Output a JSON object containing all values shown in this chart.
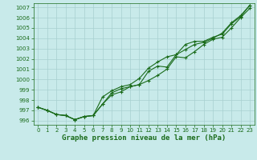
{
  "xlabel": "Graphe pression niveau de la mer (hPa)",
  "x": [
    0,
    1,
    2,
    3,
    4,
    5,
    6,
    7,
    8,
    9,
    10,
    11,
    12,
    13,
    14,
    15,
    16,
    17,
    18,
    19,
    20,
    21,
    22,
    23
  ],
  "line1": [
    997.3,
    997.0,
    996.6,
    996.5,
    996.1,
    996.4,
    996.5,
    997.6,
    998.5,
    998.8,
    999.3,
    999.5,
    999.9,
    1000.4,
    1001.0,
    1002.2,
    1002.1,
    1002.7,
    1003.4,
    1003.9,
    1004.1,
    1005.0,
    1006.0,
    1006.9
  ],
  "line2": [
    997.3,
    997.0,
    996.6,
    996.5,
    996.1,
    996.4,
    996.5,
    998.3,
    998.9,
    999.3,
    999.5,
    1000.1,
    1001.1,
    1001.7,
    1002.2,
    1002.4,
    1002.9,
    1003.4,
    1003.6,
    1004.0,
    1004.5,
    1005.5,
    1006.2,
    1007.2
  ],
  "line3": [
    997.3,
    997.0,
    996.6,
    996.5,
    996.1,
    996.4,
    996.5,
    997.6,
    998.7,
    999.1,
    999.3,
    999.5,
    1000.8,
    1001.3,
    1001.2,
    1002.4,
    1003.4,
    1003.7,
    1003.7,
    1004.1,
    1004.4,
    1005.4,
    1006.1,
    1007.2
  ],
  "line_color": "#1a6b1a",
  "bg_color": "#c8eaea",
  "grid_color": "#a8d0d0",
  "ylim": [
    995.6,
    1007.4
  ],
  "xlim": [
    -0.5,
    23.5
  ],
  "yticks": [
    996,
    997,
    998,
    999,
    1000,
    1001,
    1002,
    1003,
    1004,
    1005,
    1006,
    1007
  ],
  "xticks": [
    0,
    1,
    2,
    3,
    4,
    5,
    6,
    7,
    8,
    9,
    10,
    11,
    12,
    13,
    14,
    15,
    16,
    17,
    18,
    19,
    20,
    21,
    22,
    23
  ],
  "tick_fontsize": 5.0,
  "label_fontsize": 6.5,
  "marker": "+",
  "markersize": 2.5,
  "linewidth": 0.8
}
